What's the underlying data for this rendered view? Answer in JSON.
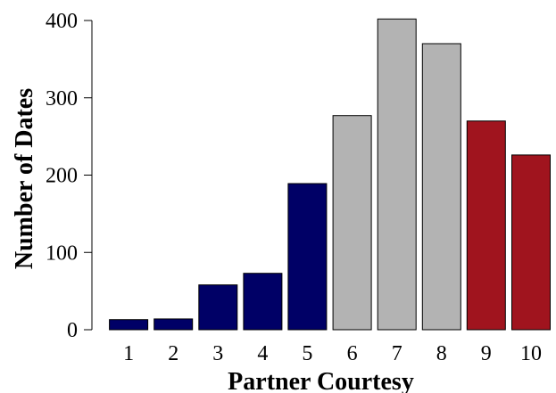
{
  "chart_data": {
    "type": "bar",
    "title": "",
    "xlabel": "Partner Courtesy",
    "ylabel": "Number of Dates",
    "categories": [
      "1",
      "2",
      "3",
      "4",
      "5",
      "6",
      "7",
      "8",
      "9",
      "10"
    ],
    "values": [
      13,
      14,
      58,
      73,
      189,
      277,
      402,
      370,
      270,
      226
    ],
    "bar_colors": [
      "#000066",
      "#000066",
      "#000066",
      "#000066",
      "#000066",
      "#b3b3b3",
      "#b3b3b3",
      "#b3b3b3",
      "#a0141e",
      "#a0141e"
    ],
    "ylim": [
      0,
      400
    ],
    "yticks": [
      0,
      100,
      200,
      300,
      400
    ],
    "grid": false,
    "legend": "none"
  }
}
